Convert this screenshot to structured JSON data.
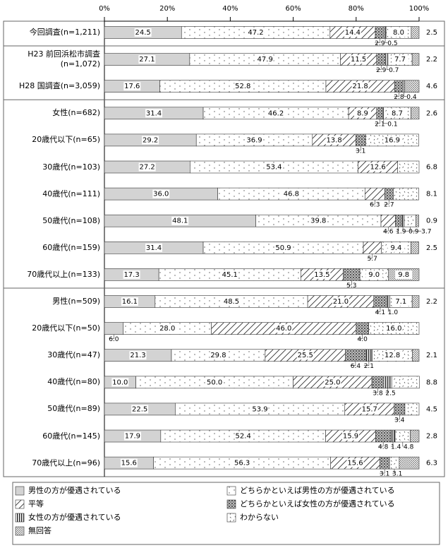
{
  "chart_data": {
    "type": "stacked-bar-horizontal",
    "categories": [
      "今回調査(n=1,211)",
      "H23 前回浜松市調査\n(n=1,072)",
      "H28 国調査(n=3,059)",
      "女性(n=682)",
      "20歳代以下(n=65)",
      "30歳代(n=103)",
      "40歳代(n=111)",
      "50歳代(n=108)",
      "60歳代(n=159)",
      "70歳代以上(n=133)",
      "男性(n=509)",
      "20歳代以下(n=50)",
      "30歳代(n=47)",
      "40歳代(n=80)",
      "50歳代(n=89)",
      "60歳代(n=145)",
      "70歳代以上(n=96)"
    ],
    "series": [
      {
        "name": "男性の方が優遇されている",
        "pattern": "solid",
        "color": "#d3d3d3",
        "values": [
          24.5,
          27.1,
          17.6,
          31.4,
          29.2,
          27.2,
          36.0,
          48.1,
          31.4,
          17.3,
          16.1,
          6.0,
          21.3,
          10.0,
          22.5,
          17.9,
          15.6
        ],
        "value_labels": [
          "24.5",
          "27.1",
          "17.6",
          "31.4",
          "29.2",
          "27.2",
          "36.0",
          "48.1",
          "31.4",
          "17.3",
          "16.1",
          "6.0",
          "21.3",
          "10.0",
          "22.5",
          "17.9",
          "15.6"
        ]
      },
      {
        "name": "どちらかといえば男性の方が優遇されている",
        "pattern": "dots",
        "color": "#555555",
        "values": [
          47.2,
          47.9,
          52.8,
          46.2,
          36.9,
          53.4,
          46.8,
          39.8,
          50.9,
          45.1,
          48.5,
          28.0,
          29.8,
          50.0,
          53.9,
          52.4,
          56.3
        ],
        "value_labels": [
          "47.2",
          "47.9",
          "52.8",
          "46.2",
          "36.9",
          "53.4",
          "46.8",
          "39.8",
          "50.9",
          "45.1",
          "48.5",
          "28.0",
          "29.8",
          "50.0",
          "53.9",
          "52.4",
          "56.3"
        ]
      },
      {
        "name": "平等",
        "pattern": "hatch",
        "color": "#333333",
        "values": [
          14.4,
          11.5,
          21.8,
          8.9,
          13.8,
          12.6,
          6.3,
          4.6,
          5.7,
          13.5,
          21.0,
          46.0,
          25.5,
          25.0,
          15.7,
          15.9,
          15.6
        ],
        "value_labels": [
          "14.4",
          "11.5",
          "21.8",
          "8.9",
          "13.8",
          "12.6",
          "6.3",
          "4.6",
          "5.7",
          "13.5",
          "21.0",
          "46.0",
          "25.5",
          "25.0",
          "15.7",
          "15.9",
          "15.6"
        ]
      },
      {
        "name": "どちらかといえば女性の方が優遇されている",
        "pattern": "checker",
        "color": "#666666",
        "values": [
          2.9,
          2.9,
          2.8,
          2.1,
          3.1,
          null,
          2.7,
          1.9,
          null,
          5.3,
          4.1,
          4.0,
          6.4,
          3.8,
          3.4,
          4.8,
          3.1
        ],
        "value_labels": [
          "2.9",
          "2.9",
          "2.8",
          "2.1",
          "3.1",
          null,
          "2.7",
          "1.9",
          null,
          "5.3",
          "4.1",
          "4.0",
          "6.4",
          "3.8",
          "3.4",
          "4.8",
          "3.1"
        ]
      },
      {
        "name": "女性の方が優遇されている",
        "pattern": "vlines",
        "color": "#222222",
        "values": [
          0.5,
          0.7,
          0.4,
          0.1,
          null,
          null,
          null,
          0.9,
          null,
          null,
          1.0,
          null,
          2.1,
          2.5,
          null,
          1.4,
          null
        ],
        "value_labels": [
          "0.5",
          "0.7",
          "0.4",
          "0.1",
          null,
          null,
          null,
          "0.9",
          null,
          null,
          "1.0",
          null,
          "2.1",
          "2.5",
          null,
          "1.4",
          null
        ]
      },
      {
        "name": "わからない",
        "pattern": "scatter",
        "color": "#444444",
        "values": [
          8.0,
          7.7,
          null,
          8.7,
          16.9,
          6.8,
          8.1,
          3.7,
          9.4,
          9.0,
          7.1,
          16.0,
          12.8,
          8.8,
          4.5,
          4.8,
          3.1
        ],
        "value_labels": [
          "8.0",
          "7.7",
          null,
          "8.7",
          "16.9",
          "6.8",
          "8.1",
          "3.7",
          "9.4",
          "9.0",
          "7.1",
          "16.0",
          "12.8",
          "8.8",
          "4.5",
          "4.8",
          "3.1"
        ]
      },
      {
        "name": "無回答",
        "pattern": "dense",
        "color": "#777777",
        "values": [
          2.5,
          2.2,
          4.6,
          2.6,
          null,
          null,
          null,
          0.9,
          2.5,
          9.8,
          2.2,
          null,
          2.1,
          null,
          null,
          2.8,
          6.3
        ],
        "value_labels": [
          "2.5",
          "2.2",
          "4.6",
          "2.6",
          null,
          null,
          null,
          "0.9",
          "2.5",
          "9.8",
          "2.2",
          null,
          "2.1",
          null,
          null,
          "2.8",
          "6.3"
        ]
      }
    ],
    "xlim": [
      0,
      100
    ],
    "xticks": [
      {
        "value": 0,
        "label": "0%"
      },
      {
        "value": 20,
        "label": "20%"
      },
      {
        "value": 40,
        "label": "40%"
      },
      {
        "value": 60,
        "label": "60%"
      },
      {
        "value": 80,
        "label": "80%"
      },
      {
        "value": 100,
        "label": "100%"
      }
    ],
    "grid": false
  }
}
